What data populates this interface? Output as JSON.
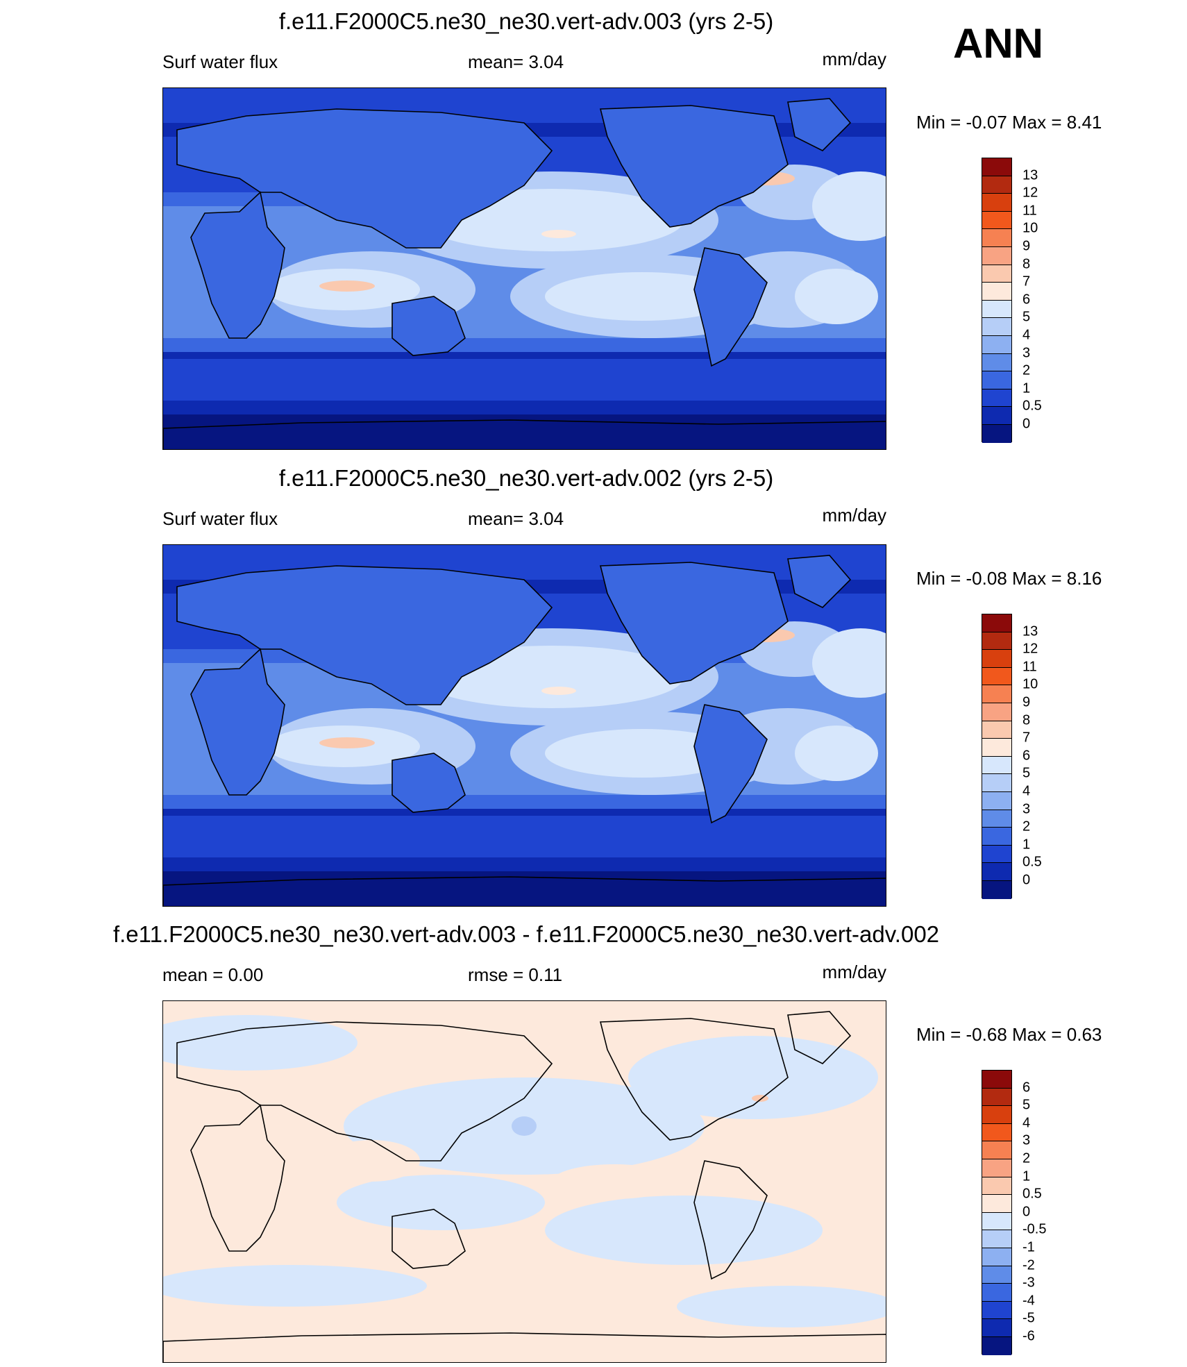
{
  "season_label": "ANN",
  "units": "mm/day",
  "panels": [
    {
      "id": "test",
      "title": "f.e11.F2000C5.ne30_ne30.vert-adv.003 (yrs 2-5)",
      "left_label": "Surf water flux",
      "center_label": "mean=   3.04",
      "right_label": "mm/day",
      "min_max": "Min =  -0.07 Max =   8.41",
      "colorbar": {
        "labels": [
          "13",
          "12",
          "11",
          "10",
          "9",
          "8",
          "7",
          "6",
          "5",
          "4",
          "3",
          "2",
          "1",
          "0.5",
          "0"
        ],
        "colors": [
          "#8B0A0A",
          "#B22A10",
          "#D8400E",
          "#F1581C",
          "#F68152",
          "#F8A383",
          "#FAC9AF",
          "#FDE9DC",
          "#D7E7FC",
          "#B6CEF7",
          "#8DB0F1",
          "#5F8CE8",
          "#3A67E0",
          "#1F44D0",
          "#0E2AB0",
          "#061580"
        ]
      }
    },
    {
      "id": "control",
      "title": "f.e11.F2000C5.ne30_ne30.vert-adv.002 (yrs 2-5)",
      "left_label": "Surf water flux",
      "center_label": "mean=   3.04",
      "right_label": "mm/day",
      "min_max": "Min =  -0.08 Max =   8.16",
      "colorbar": {
        "labels": [
          "13",
          "12",
          "11",
          "10",
          "9",
          "8",
          "7",
          "6",
          "5",
          "4",
          "3",
          "2",
          "1",
          "0.5",
          "0"
        ],
        "colors": [
          "#8B0A0A",
          "#B22A10",
          "#D8400E",
          "#F1581C",
          "#F68152",
          "#F8A383",
          "#FAC9AF",
          "#FDE9DC",
          "#D7E7FC",
          "#B6CEF7",
          "#8DB0F1",
          "#5F8CE8",
          "#3A67E0",
          "#1F44D0",
          "#0E2AB0",
          "#061580"
        ]
      }
    },
    {
      "id": "difference",
      "title": "f.e11.F2000C5.ne30_ne30.vert-adv.003 - f.e11.F2000C5.ne30_ne30.vert-adv.002",
      "left_label": "mean =   0.00",
      "center_label": "rmse =   0.11",
      "right_label": "mm/day",
      "min_max": "Min =  -0.68 Max =   0.63",
      "colorbar": {
        "labels": [
          "6",
          "5",
          "4",
          "3",
          "2",
          "1",
          "0.5",
          "0",
          "-0.5",
          "-1",
          "-2",
          "-3",
          "-4",
          "-5",
          "-6"
        ],
        "colors": [
          "#8B0A0A",
          "#B22A10",
          "#D8400E",
          "#F1581C",
          "#F68152",
          "#F8A383",
          "#FAC9AF",
          "#FDE9DC",
          "#D7E7FC",
          "#B6CEF7",
          "#8DB0F1",
          "#5F8CE8",
          "#3A67E0",
          "#1F44D0",
          "#0E2AB0",
          "#061580"
        ]
      }
    }
  ],
  "map_colors": {
    "deep": "#061580",
    "dark": "#0E2AB0",
    "mid_dark": "#1F44D0",
    "mid": "#3A67E0",
    "med": "#5F8CE8",
    "light": "#8DB0F1",
    "lighter": "#B6CEF7",
    "pale": "#D7E7FC",
    "warm_pale": "#FDE9DC",
    "warm": "#FAC9AF",
    "coast": "#000000"
  }
}
